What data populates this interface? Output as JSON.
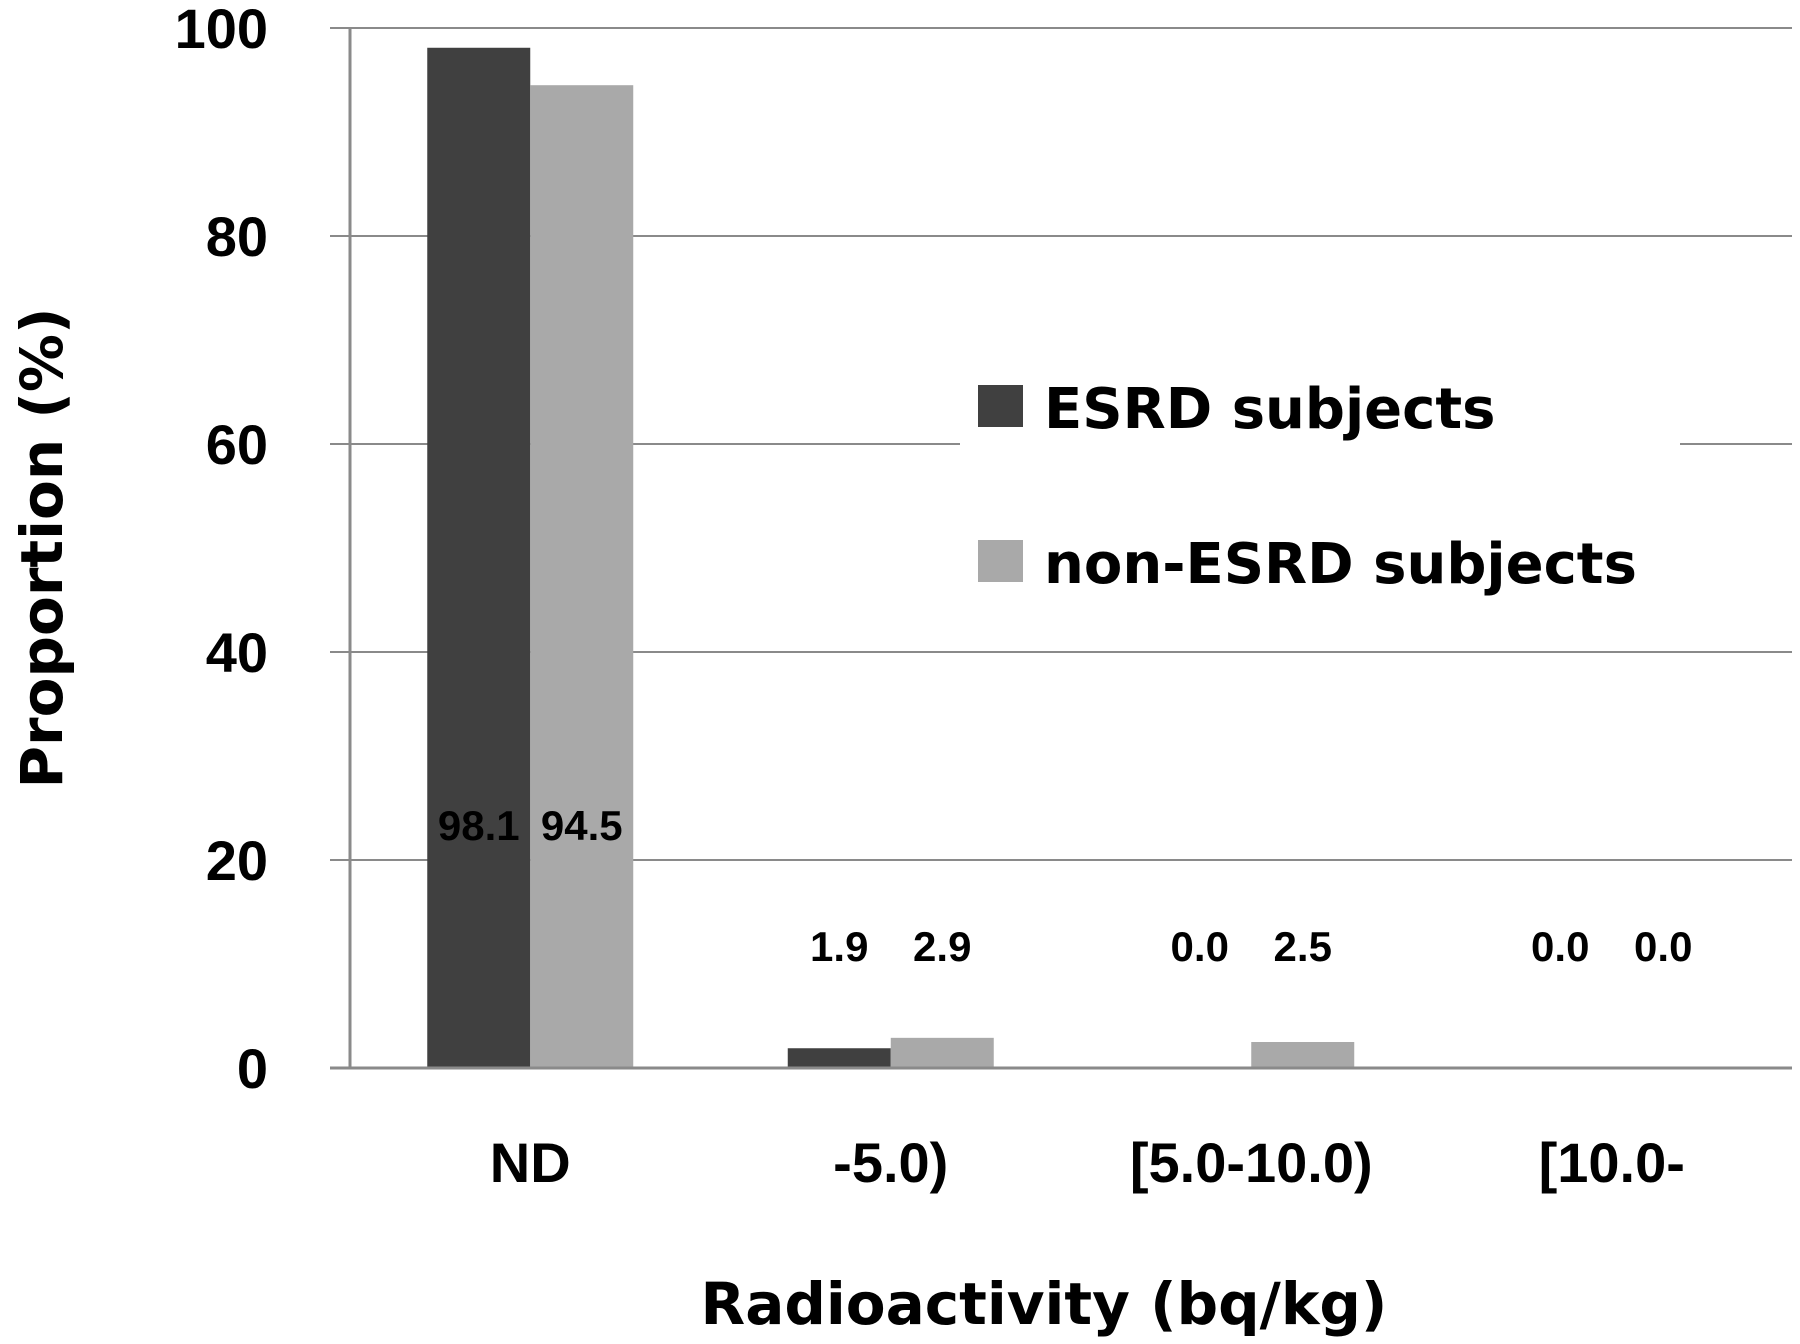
{
  "chart_data": {
    "type": "bar",
    "title": "",
    "xlabel": "Radioactivity (bq/kg)",
    "ylabel": "Proportion (%)",
    "ylim": [
      0,
      100
    ],
    "yticks": [
      0,
      20,
      40,
      60,
      80,
      100
    ],
    "grid": true,
    "legend_position": "center-right",
    "categories": [
      "ND",
      "-5.0)",
      "[5.0-10.0)",
      "[10.0-"
    ],
    "series": [
      {
        "name": "ESRD subjects",
        "color": "#404040",
        "values": [
          98.1,
          1.9,
          0.0,
          0.0
        ],
        "labels": [
          "98.1",
          "1.9",
          "0.0",
          "0.0"
        ]
      },
      {
        "name": "non-ESRD subjects",
        "color": "#a9a9a9",
        "values": [
          94.5,
          2.9,
          2.5,
          0.0
        ],
        "labels": [
          "94.5",
          "2.9",
          "2.5",
          "0.0"
        ]
      }
    ]
  }
}
